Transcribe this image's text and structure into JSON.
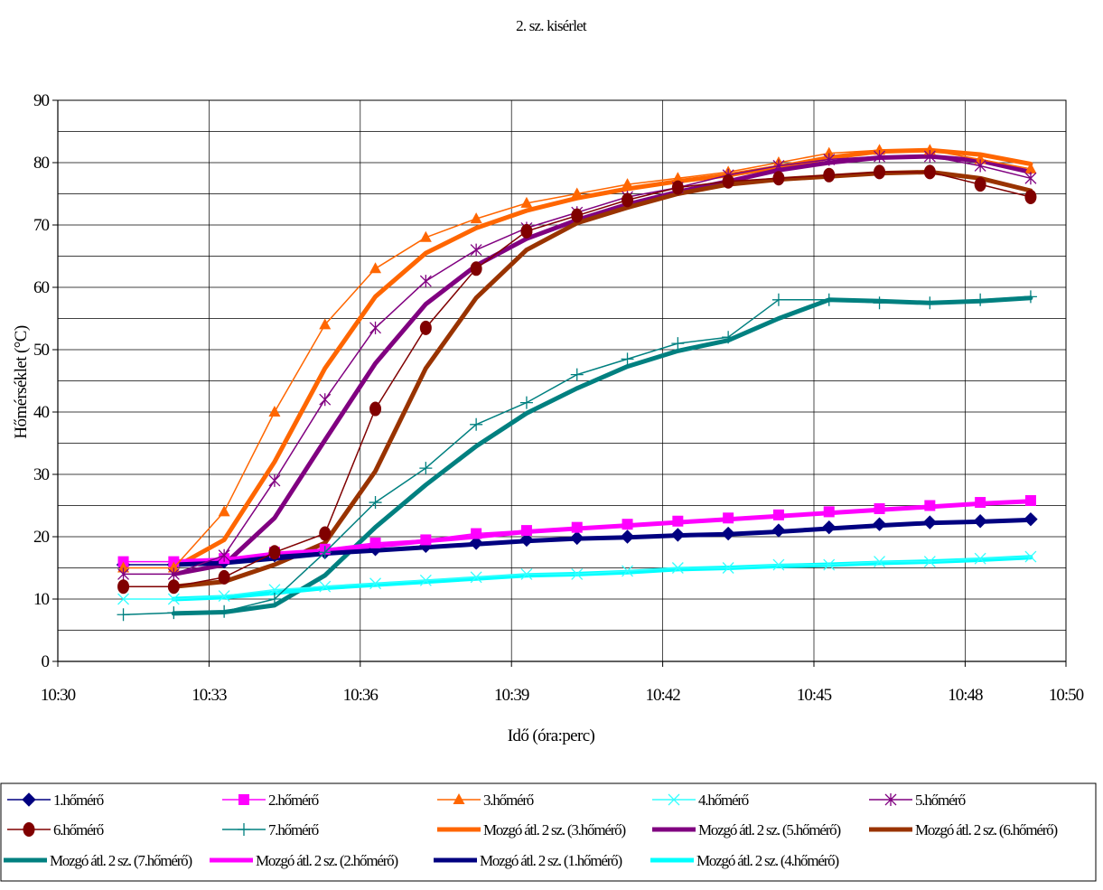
{
  "chart_data": {
    "type": "line",
    "title": "2. sz. kisérlet",
    "xlabel": "Idő (óra:perc)",
    "ylabel": "Hőmérséklet (°C)",
    "xlim_minutes": [
      630,
      650
    ],
    "ylim": [
      0,
      90
    ],
    "x_tick_labels": [
      "10:30",
      "10:33",
      "10:36",
      "10:39",
      "10:42",
      "10:45",
      "10:48",
      "10:50"
    ],
    "y_tick_labels": [
      "0",
      "10",
      "20",
      "30",
      "40",
      "50",
      "60",
      "70",
      "80",
      "90"
    ],
    "grid": true,
    "legend_position": "bottom",
    "x_minutes": [
      631.3,
      632.3,
      633.3,
      634.3,
      635.3,
      636.3,
      637.3,
      638.3,
      639.3,
      640.3,
      641.3,
      642.3,
      643.3,
      644.3,
      645.3,
      646.3,
      647.3,
      648.3,
      649.3
    ],
    "series": [
      {
        "name": "1.hőmérő",
        "color": "#000080",
        "marker": "diamond",
        "width": 1.5,
        "values": [
          15.5,
          15.5,
          16.0,
          17.0,
          17.5,
          18.0,
          18.5,
          19.0,
          19.5,
          19.8,
          20.0,
          20.3,
          20.5,
          21.0,
          21.5,
          22.0,
          22.3,
          22.5,
          22.8
        ]
      },
      {
        "name": "2.hőmérő",
        "color": "#FF00FF",
        "marker": "square",
        "width": 1.5,
        "values": [
          16.0,
          16.0,
          16.5,
          17.5,
          18.0,
          19.0,
          19.5,
          20.5,
          21.0,
          21.5,
          22.0,
          22.5,
          23.0,
          23.5,
          24.0,
          24.5,
          25.0,
          25.5,
          25.8
        ]
      },
      {
        "name": "3.hőmérő",
        "color": "#FF6600",
        "marker": "triangle",
        "width": 1.5,
        "values": [
          15.0,
          15.0,
          24.0,
          40.0,
          54.0,
          63.0,
          68.0,
          71.0,
          73.5,
          75.0,
          76.5,
          77.5,
          78.5,
          80.0,
          81.5,
          82.0,
          82.0,
          80.5,
          79.0
        ]
      },
      {
        "name": "4.hőmérő",
        "color": "#33FFFF",
        "marker": "x",
        "width": 1.5,
        "values": [
          10.0,
          10.0,
          10.5,
          11.5,
          12.0,
          12.5,
          13.0,
          13.5,
          14.0,
          14.0,
          14.5,
          15.0,
          15.0,
          15.5,
          15.5,
          16.0,
          16.0,
          16.5,
          16.8
        ]
      },
      {
        "name": "5.hőmérő",
        "color": "#800080",
        "marker": "asterisk",
        "width": 1.5,
        "values": [
          14.0,
          14.0,
          17.0,
          29.0,
          42.0,
          53.5,
          61.0,
          66.0,
          69.5,
          72.0,
          74.5,
          76.0,
          78.0,
          79.5,
          80.5,
          81.0,
          81.0,
          79.5,
          77.5
        ]
      },
      {
        "name": "6.hőmérő",
        "color": "#800000",
        "marker": "circle",
        "width": 1.5,
        "values": [
          12.0,
          12.0,
          13.5,
          17.5,
          20.5,
          40.5,
          53.5,
          63.0,
          69.0,
          71.5,
          74.0,
          76.0,
          77.0,
          77.5,
          78.0,
          78.5,
          78.5,
          76.5,
          74.5
        ]
      },
      {
        "name": "7.hőmérő",
        "color": "#008080",
        "marker": "plus",
        "width": 1.5,
        "values": [
          7.5,
          7.8,
          8.0,
          10.0,
          17.5,
          25.5,
          31.0,
          38.0,
          41.5,
          46.0,
          48.5,
          51.0,
          52.0,
          58.0,
          58.0,
          57.5,
          57.5,
          58.0,
          58.5
        ]
      },
      {
        "name": "Mozgó átl. 2 sz. (3.hőmérő)",
        "color": "#FF6600",
        "marker": "none",
        "width": 5,
        "offset": 1,
        "values": [
          null,
          15.0,
          19.5,
          32.0,
          47.0,
          58.5,
          65.5,
          69.5,
          72.3,
          74.3,
          75.8,
          77.0,
          78.0,
          79.3,
          80.8,
          81.8,
          82.0,
          81.3,
          79.8
        ]
      },
      {
        "name": "Mozgó átl. 2 sz. (5.hőmérő)",
        "color": "#800080",
        "marker": "none",
        "width": 5,
        "values": [
          null,
          14.0,
          15.5,
          23.0,
          35.5,
          47.8,
          57.3,
          63.5,
          67.8,
          70.8,
          73.3,
          75.3,
          77.0,
          78.8,
          80.0,
          80.8,
          81.0,
          80.3,
          78.5
        ]
      },
      {
        "name": "Mozgó átl. 2 sz. (6.hőmérő)",
        "color": "#993300",
        "marker": "none",
        "width": 5,
        "values": [
          null,
          12.0,
          12.8,
          15.5,
          19.0,
          30.5,
          47.0,
          58.3,
          66.0,
          70.3,
          72.8,
          75.0,
          76.5,
          77.3,
          77.8,
          78.3,
          78.5,
          77.5,
          75.5
        ]
      },
      {
        "name": "Mozgó átl. 2 sz. (7.hőmérő)",
        "color": "#008080",
        "marker": "none",
        "width": 5,
        "values": [
          null,
          7.7,
          7.9,
          9.0,
          13.8,
          21.5,
          28.3,
          34.5,
          39.8,
          43.8,
          47.3,
          49.8,
          51.5,
          55.0,
          58.0,
          57.8,
          57.5,
          57.8,
          58.3
        ]
      },
      {
        "name": "Mozgó átl. 2 sz. (2.hőmérő)",
        "color": "#FF00FF",
        "marker": "none",
        "width": 5,
        "values": [
          null,
          16.0,
          16.3,
          17.0,
          17.8,
          18.5,
          19.3,
          20.0,
          20.8,
          21.3,
          21.8,
          22.3,
          22.8,
          23.3,
          23.8,
          24.3,
          24.8,
          25.3,
          25.7
        ]
      },
      {
        "name": "Mozgó átl. 2 sz. (1.hőmérő)",
        "color": "#000080",
        "marker": "none",
        "width": 5,
        "values": [
          null,
          15.5,
          15.8,
          16.5,
          17.3,
          17.8,
          18.3,
          18.8,
          19.3,
          19.7,
          19.9,
          20.2,
          20.4,
          20.8,
          21.3,
          21.8,
          22.2,
          22.4,
          22.7
        ]
      },
      {
        "name": "Mozgó átl. 2 sz. (4.hőmérő)",
        "color": "#00FFFF",
        "marker": "none",
        "width": 5,
        "values": [
          null,
          10.0,
          10.3,
          11.0,
          11.8,
          12.3,
          12.8,
          13.3,
          13.8,
          14.0,
          14.3,
          14.8,
          15.0,
          15.3,
          15.5,
          15.8,
          16.0,
          16.3,
          16.7
        ]
      }
    ]
  }
}
